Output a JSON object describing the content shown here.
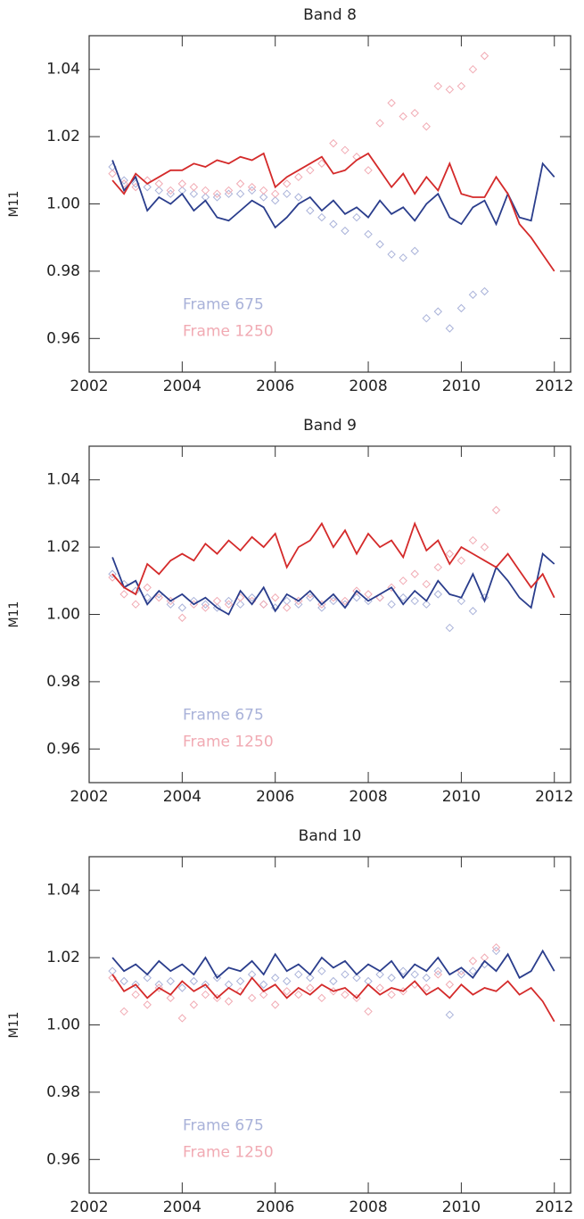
{
  "chart_data": [
    {
      "type": "line",
      "title": "Band 8",
      "y_label": "M11",
      "x": [
        2002.5,
        2002.75,
        2003,
        2003.25,
        2003.5,
        2003.75,
        2004,
        2004.25,
        2004.5,
        2004.75,
        2005,
        2005.25,
        2005.5,
        2005.75,
        2006,
        2006.25,
        2006.5,
        2006.75,
        2007,
        2007.25,
        2007.5,
        2007.75,
        2008,
        2008.25,
        2008.5,
        2008.75,
        2009,
        2009.25,
        2009.5,
        2009.75,
        2010,
        2010.25,
        2010.5,
        2010.75,
        2011,
        2011.25,
        2011.5,
        2011.75,
        2012
      ],
      "xlim": [
        2002,
        2012.35
      ],
      "xticks": [
        2002,
        2004,
        2006,
        2008,
        2010,
        2012
      ],
      "ylim": [
        0.95,
        1.05
      ],
      "yticks": [
        0.96,
        0.98,
        {
          "value": 1,
          "label": "1.00"
        },
        1.02,
        1.04
      ],
      "series": [
        {
          "name": "Frame 675",
          "color": "#2a3d8c",
          "point_color": "#a9b2d9",
          "values": [
            1.013,
            1.004,
            1.008,
            0.998,
            1.002,
            1.0,
            1.003,
            0.998,
            1.001,
            0.996,
            0.995,
            0.998,
            1.001,
            0.999,
            0.993,
            0.996,
            1.0,
            1.002,
            0.998,
            1.001,
            0.997,
            0.999,
            0.996,
            1.001,
            0.997,
            0.999,
            0.995,
            1.0,
            1.003,
            0.996,
            0.994,
            0.999,
            1.001,
            0.994,
            1.003,
            0.996,
            0.995,
            1.012,
            1.008
          ],
          "points": [
            1.011,
            1.007,
            1.006,
            1.005,
            1.004,
            1.003,
            1.004,
            1.003,
            1.002,
            1.002,
            1.003,
            1.003,
            1.004,
            1.002,
            1.001,
            1.003,
            1.002,
            0.998,
            0.996,
            0.994,
            0.992,
            0.996,
            0.991,
            0.988,
            0.985,
            0.984,
            0.986,
            0.966,
            0.968,
            0.963,
            0.969,
            0.973,
            0.974,
            null,
            null,
            null,
            null,
            null,
            null
          ]
        },
        {
          "name": "Frame 1250",
          "color": "#d42a2a",
          "point_color": "#f1aab3",
          "values": [
            1.007,
            1.003,
            1.009,
            1.006,
            1.008,
            1.01,
            1.01,
            1.012,
            1.011,
            1.013,
            1.012,
            1.014,
            1.013,
            1.015,
            1.005,
            1.008,
            1.01,
            1.012,
            1.014,
            1.009,
            1.01,
            1.013,
            1.015,
            1.01,
            1.005,
            1.009,
            1.003,
            1.008,
            1.004,
            1.012,
            1.003,
            1.002,
            1.002,
            1.008,
            1.003,
            0.994,
            0.99,
            0.985,
            0.98
          ],
          "points": [
            1.009,
            1.006,
            1.005,
            1.007,
            1.006,
            1.004,
            1.006,
            1.005,
            1.004,
            1.003,
            1.004,
            1.006,
            1.005,
            1.004,
            1.003,
            1.006,
            1.008,
            1.01,
            1.012,
            1.018,
            1.016,
            1.014,
            1.01,
            1.024,
            1.03,
            1.026,
            1.027,
            1.023,
            1.035,
            1.034,
            1.035,
            1.04,
            1.044,
            null,
            null,
            null,
            null,
            null,
            null
          ]
        }
      ]
    },
    {
      "type": "line",
      "title": "Band 9",
      "y_label": "M11",
      "x": [
        2002.5,
        2002.75,
        2003,
        2003.25,
        2003.5,
        2003.75,
        2004,
        2004.25,
        2004.5,
        2004.75,
        2005,
        2005.25,
        2005.5,
        2005.75,
        2006,
        2006.25,
        2006.5,
        2006.75,
        2007,
        2007.25,
        2007.5,
        2007.75,
        2008,
        2008.25,
        2008.5,
        2008.75,
        2009,
        2009.25,
        2009.5,
        2009.75,
        2010,
        2010.25,
        2010.5,
        2010.75,
        2011,
        2011.25,
        2011.5,
        2011.75,
        2012
      ],
      "xlim": [
        2002,
        2012.35
      ],
      "xticks": [
        2002,
        2004,
        2006,
        2008,
        2010,
        2012
      ],
      "ylim": [
        0.95,
        1.05
      ],
      "yticks": [
        0.96,
        0.98,
        {
          "value": 1,
          "label": "1.00"
        },
        1.02,
        1.04
      ],
      "series": [
        {
          "name": "Frame 675",
          "color": "#2a3d8c",
          "point_color": "#a9b2d9",
          "values": [
            1.017,
            1.008,
            1.01,
            1.003,
            1.007,
            1.004,
            1.006,
            1.003,
            1.005,
            1.002,
            1.0,
            1.007,
            1.003,
            1.008,
            1.001,
            1.006,
            1.004,
            1.007,
            1.003,
            1.006,
            1.002,
            1.007,
            1.004,
            1.006,
            1.008,
            1.003,
            1.007,
            1.004,
            1.01,
            1.006,
            1.005,
            1.012,
            1.004,
            1.014,
            1.01,
            1.005,
            1.002,
            1.018,
            1.015
          ],
          "points": [
            1.012,
            1.009,
            1.007,
            1.005,
            1.006,
            1.003,
            1.002,
            1.004,
            1.003,
            1.002,
            1.004,
            1.003,
            1.005,
            1.003,
            1.002,
            1.004,
            1.003,
            1.005,
            1.002,
            1.004,
            1.003,
            1.005,
            1.004,
            1.005,
            1.003,
            1.005,
            1.004,
            1.003,
            1.006,
            0.996,
            1.004,
            1.001,
            1.005,
            null,
            null,
            null,
            null,
            null,
            null
          ]
        },
        {
          "name": "Frame 1250",
          "color": "#d42a2a",
          "point_color": "#f1aab3",
          "values": [
            1.012,
            1.008,
            1.006,
            1.015,
            1.012,
            1.016,
            1.018,
            1.016,
            1.021,
            1.018,
            1.022,
            1.019,
            1.023,
            1.02,
            1.024,
            1.014,
            1.02,
            1.022,
            1.027,
            1.02,
            1.025,
            1.018,
            1.024,
            1.02,
            1.022,
            1.017,
            1.027,
            1.019,
            1.022,
            1.015,
            1.02,
            1.018,
            1.016,
            1.014,
            1.018,
            1.013,
            1.008,
            1.012,
            1.005
          ],
          "points": [
            1.011,
            1.006,
            1.003,
            1.008,
            1.005,
            1.004,
            0.999,
            1.003,
            1.002,
            1.004,
            1.003,
            1.005,
            1.004,
            1.003,
            1.005,
            1.002,
            1.004,
            1.006,
            1.003,
            1.005,
            1.004,
            1.007,
            1.006,
            1.005,
            1.008,
            1.01,
            1.012,
            1.009,
            1.014,
            1.018,
            1.016,
            1.022,
            1.02,
            1.031,
            null,
            null,
            null,
            null,
            null
          ]
        }
      ]
    },
    {
      "type": "line",
      "title": "Band 10",
      "y_label": "M11",
      "x": [
        2002.5,
        2002.75,
        2003,
        2003.25,
        2003.5,
        2003.75,
        2004,
        2004.25,
        2004.5,
        2004.75,
        2005,
        2005.25,
        2005.5,
        2005.75,
        2006,
        2006.25,
        2006.5,
        2006.75,
        2007,
        2007.25,
        2007.5,
        2007.75,
        2008,
        2008.25,
        2008.5,
        2008.75,
        2009,
        2009.25,
        2009.5,
        2009.75,
        2010,
        2010.25,
        2010.5,
        2010.75,
        2011,
        2011.25,
        2011.5,
        2011.75,
        2012
      ],
      "xlim": [
        2002,
        2012.35
      ],
      "xticks": [
        2002,
        2004,
        2006,
        2008,
        2010,
        2012
      ],
      "ylim": [
        0.95,
        1.05
      ],
      "yticks": [
        0.96,
        0.98,
        {
          "value": 1,
          "label": "1.00"
        },
        1.02,
        1.04
      ],
      "series": [
        {
          "name": "Frame 675",
          "color": "#2a3d8c",
          "point_color": "#a9b2d9",
          "values": [
            1.02,
            1.016,
            1.018,
            1.015,
            1.019,
            1.016,
            1.018,
            1.015,
            1.02,
            1.014,
            1.017,
            1.016,
            1.019,
            1.015,
            1.021,
            1.016,
            1.018,
            1.015,
            1.02,
            1.017,
            1.019,
            1.015,
            1.018,
            1.016,
            1.019,
            1.014,
            1.018,
            1.016,
            1.02,
            1.015,
            1.017,
            1.014,
            1.019,
            1.016,
            1.021,
            1.014,
            1.016,
            1.022,
            1.016
          ],
          "points": [
            1.016,
            1.013,
            1.012,
            1.014,
            1.012,
            1.013,
            1.011,
            1.013,
            1.012,
            1.014,
            1.012,
            1.013,
            1.015,
            1.012,
            1.014,
            1.013,
            1.015,
            1.014,
            1.016,
            1.013,
            1.015,
            1.014,
            1.013,
            1.015,
            1.014,
            1.016,
            1.015,
            1.014,
            1.016,
            1.003,
            1.015,
            1.016,
            1.018,
            1.022,
            null,
            null,
            null,
            null,
            null
          ]
        },
        {
          "name": "Frame 1250",
          "color": "#d42a2a",
          "point_color": "#f1aab3",
          "values": [
            1.015,
            1.01,
            1.012,
            1.008,
            1.011,
            1.009,
            1.013,
            1.01,
            1.012,
            1.008,
            1.011,
            1.009,
            1.014,
            1.01,
            1.012,
            1.008,
            1.011,
            1.009,
            1.012,
            1.01,
            1.011,
            1.008,
            1.012,
            1.009,
            1.011,
            1.01,
            1.013,
            1.009,
            1.011,
            1.008,
            1.012,
            1.009,
            1.011,
            1.01,
            1.013,
            1.009,
            1.011,
            1.007,
            1.001
          ],
          "points": [
            1.014,
            1.004,
            1.009,
            1.006,
            1.011,
            1.008,
            1.002,
            1.006,
            1.009,
            1.008,
            1.007,
            1.01,
            1.008,
            1.009,
            1.006,
            1.01,
            1.009,
            1.011,
            1.008,
            1.01,
            1.009,
            1.008,
            1.004,
            1.011,
            1.009,
            1.01,
            1.012,
            1.011,
            1.015,
            1.012,
            1.016,
            1.019,
            1.02,
            1.023,
            null,
            null,
            null,
            null,
            null
          ]
        }
      ]
    }
  ]
}
